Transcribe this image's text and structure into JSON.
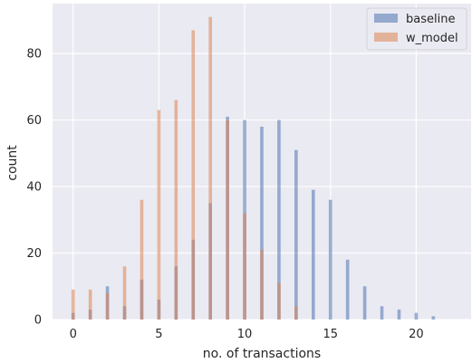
{
  "chart_data": {
    "type": "bar",
    "subtype": "overlaid-histogram",
    "xlabel": "no. of transactions",
    "ylabel": "count",
    "xlim": [
      -1.2,
      23.2
    ],
    "ylim": [
      0,
      95
    ],
    "xticks": [
      0,
      5,
      10,
      15,
      20
    ],
    "yticks": [
      0,
      20,
      40,
      60,
      80
    ],
    "grid": true,
    "legend_position": "top-right",
    "series": [
      {
        "name": "baseline",
        "color": "#4c72b0",
        "x": [
          0,
          1,
          2,
          3,
          4,
          5,
          6,
          7,
          8,
          9,
          10,
          11,
          12,
          13,
          14,
          15,
          16,
          17,
          18,
          19,
          20,
          21
        ],
        "values": [
          2,
          3,
          10,
          4,
          12,
          6,
          16,
          24,
          35,
          61,
          60,
          58,
          60,
          51,
          39,
          36,
          18,
          10,
          4,
          3,
          2,
          1
        ]
      },
      {
        "name": "w_model",
        "color": "#dd8452",
        "x": [
          0,
          1,
          2,
          3,
          4,
          5,
          6,
          7,
          8,
          9,
          10,
          11,
          12,
          13
        ],
        "values": [
          9,
          9,
          8,
          16,
          36,
          63,
          66,
          87,
          91,
          60,
          32,
          21,
          11,
          4
        ]
      }
    ]
  }
}
